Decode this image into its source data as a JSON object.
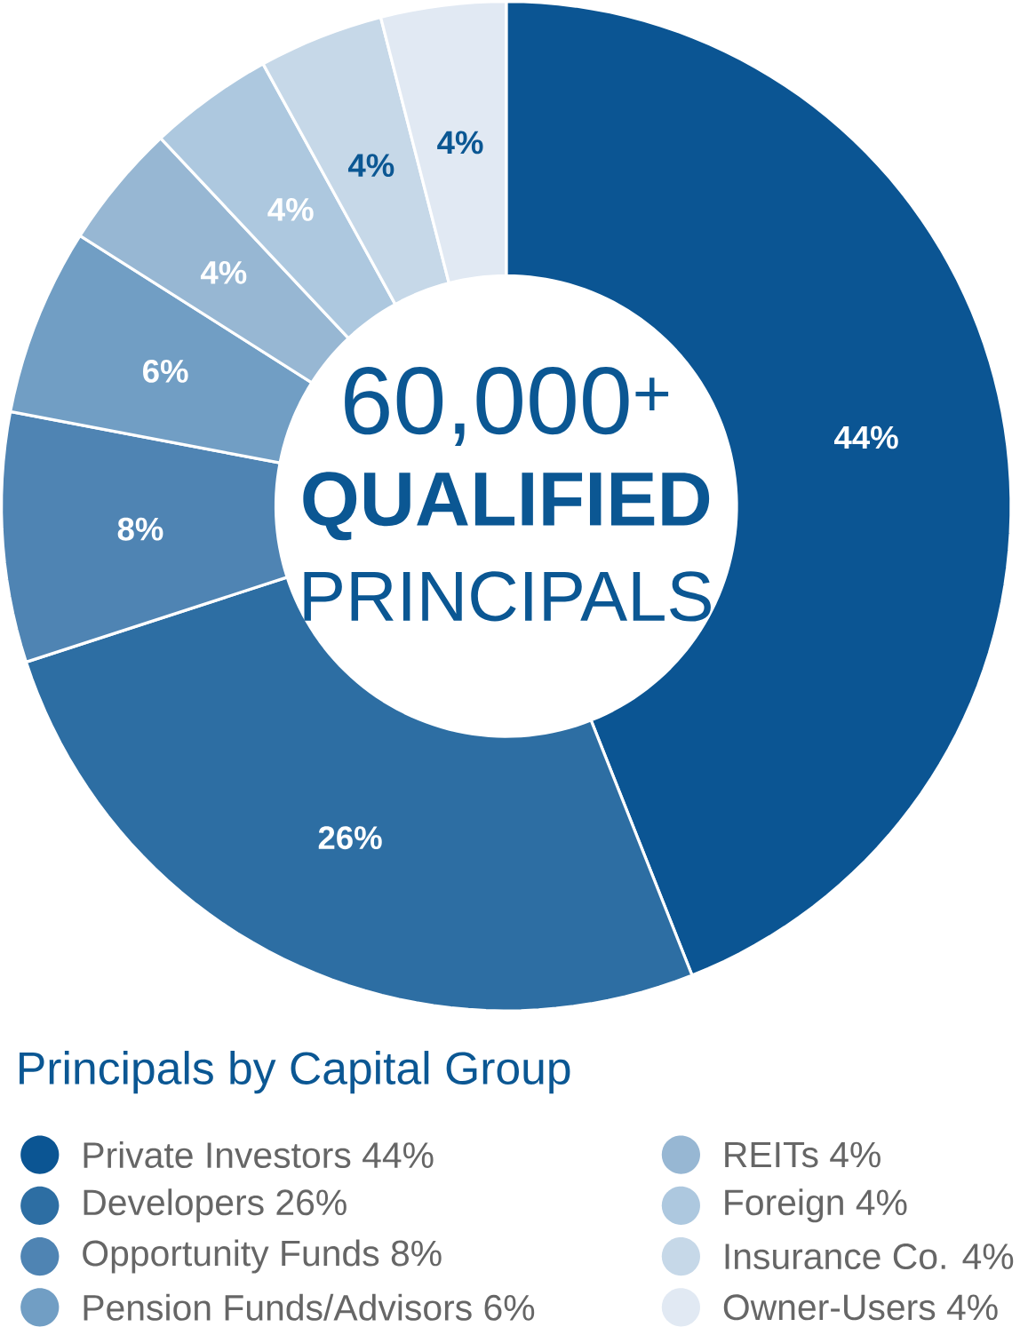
{
  "chart_data": {
    "type": "donut",
    "annotations": [
      "60,000$^{+}$",
      "**QUALIFIED**",
      "PRINCIPALS"
    ],
    "legend_title": "Principals by Capital Group",
    "categories": [
      "Private Investors 44%",
      "Developers 26%",
      "Opportunity Funds 8%",
      "Pension Funds/Advisors 6%",
      "REITs 4%",
      "Foreign 4%",
      "Insurance Co. 4%",
      "Owner-Users 4%"
    ],
    "values": [
      44,
      26,
      8,
      6,
      4,
      4,
      4,
      4
    ],
    "value_labels": [
      "44%",
      "26%",
      "8%",
      "6%",
      "4%",
      "4%",
      "4%",
      "4%"
    ],
    "colors": [
      "#0b5593",
      "#2d6ea3",
      "#4f84b3",
      "#719ec4",
      "#97b7d3",
      "#adc8df",
      "#c6d8e8",
      "#e1e9f3"
    ],
    "legend": "bottom"
  }
}
